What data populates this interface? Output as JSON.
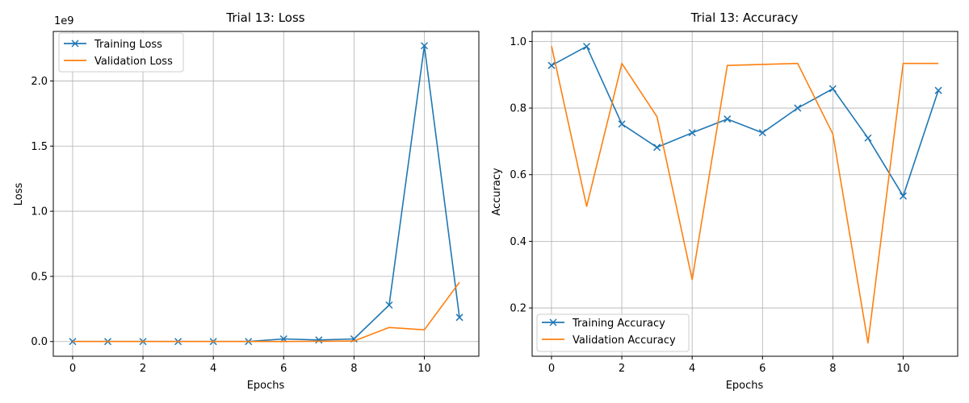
{
  "chart_data": [
    {
      "type": "line",
      "title": "Trial 13: Loss",
      "xlabel": "Epochs",
      "ylabel": "Loss",
      "y_offset_label": "1e9",
      "y_scale": 1000000000,
      "x": [
        0,
        1,
        2,
        3,
        4,
        5,
        6,
        7,
        8,
        9,
        10,
        11
      ],
      "xlim": [
        -0.55,
        11.55
      ],
      "ylim": [
        -113000000,
        2380000000
      ],
      "xticks": [
        0,
        2,
        4,
        6,
        8,
        10
      ],
      "xtick_labels": [
        "0",
        "2",
        "4",
        "6",
        "8",
        "10"
      ],
      "yticks": [
        0,
        500000000,
        1000000000,
        1500000000,
        2000000000
      ],
      "ytick_labels": [
        "0.0",
        "0.5",
        "1.0",
        "1.5",
        "2.0"
      ],
      "grid": true,
      "legend_position": "upper left",
      "series": [
        {
          "name": "Training Loss",
          "color": "#1f77b4",
          "marker": "x",
          "values": [
            0,
            0,
            0,
            0,
            0,
            0,
            20000000,
            12000000,
            20000000,
            280000000,
            2270000000,
            185000000
          ]
        },
        {
          "name": "Validation Loss",
          "color": "#ff7f0e",
          "marker": "none",
          "values": [
            0,
            0,
            0,
            0,
            0,
            0,
            0,
            2000000,
            4000000,
            108000000,
            90000000,
            455000000
          ]
        }
      ]
    },
    {
      "type": "line",
      "title": "Trial 13: Accuracy",
      "xlabel": "Epochs",
      "ylabel": "Accuracy",
      "x": [
        0,
        1,
        2,
        3,
        4,
        5,
        6,
        7,
        8,
        9,
        10,
        11
      ],
      "xlim": [
        -0.55,
        11.55
      ],
      "ylim": [
        0.055,
        1.03
      ],
      "xticks": [
        0,
        2,
        4,
        6,
        8,
        10
      ],
      "xtick_labels": [
        "0",
        "2",
        "4",
        "6",
        "8",
        "10"
      ],
      "yticks": [
        0.2,
        0.4,
        0.6,
        0.8,
        1.0
      ],
      "ytick_labels": [
        "0.2",
        "0.4",
        "0.6",
        "0.8",
        "1.0"
      ],
      "grid": true,
      "legend_position": "lower left",
      "series": [
        {
          "name": "Training Accuracy",
          "color": "#1f77b4",
          "marker": "x",
          "values": [
            0.928,
            0.985,
            0.752,
            0.682,
            0.726,
            0.767,
            0.726,
            0.8,
            0.858,
            0.71,
            0.536,
            0.853
          ]
        },
        {
          "name": "Validation Accuracy",
          "color": "#ff7f0e",
          "marker": "none",
          "values": [
            0.986,
            0.505,
            0.934,
            0.774,
            0.285,
            0.928,
            0.931,
            0.934,
            0.722,
            0.095,
            0.934,
            0.934
          ]
        }
      ]
    }
  ]
}
